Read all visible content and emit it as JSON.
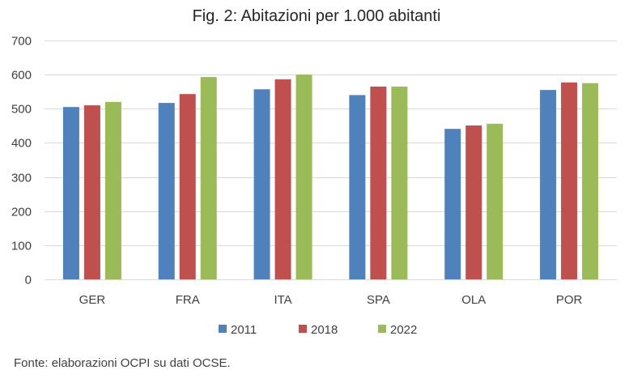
{
  "chart_data": {
    "type": "bar",
    "title": "Fig. 2: Abitazioni per 1.000 abitanti",
    "xlabel": "",
    "ylabel": "",
    "ylim": [
      0,
      700
    ],
    "yticks": [
      0,
      100,
      200,
      300,
      400,
      500,
      600,
      700
    ],
    "grid": true,
    "legend_position": "bottom",
    "categories": [
      "GER",
      "FRA",
      "ITA",
      "SPA",
      "OLA",
      "POR"
    ],
    "series": [
      {
        "name": "2011",
        "color": "#4F81BD",
        "values": [
          505,
          517,
          557,
          540,
          441,
          555
        ]
      },
      {
        "name": "2018",
        "color": "#C0504D",
        "values": [
          510,
          543,
          586,
          565,
          451,
          577
        ]
      },
      {
        "name": "2022",
        "color": "#9BBB59",
        "values": [
          520,
          593,
          600,
          565,
          456,
          575
        ]
      }
    ]
  },
  "source_note": "Fonte: elaborazioni OCPI su dati OCSE."
}
